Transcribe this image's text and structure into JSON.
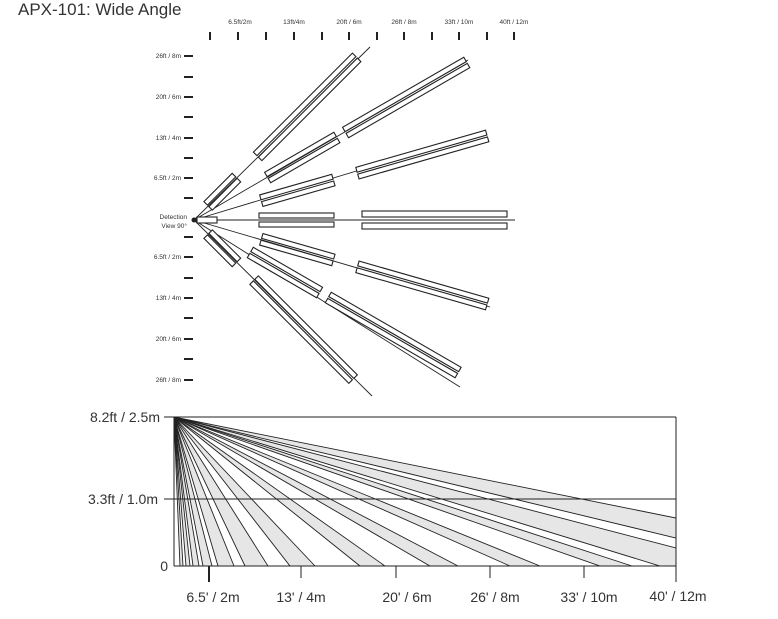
{
  "title": "APX-101: Wide Angle",
  "top_view": {
    "top_ticks": [
      "6.5ft/2m",
      "13ft/4m",
      "20ft / 6m",
      "26ft / 8m",
      "33ft / 10m",
      "40ft / 12m"
    ],
    "left_ticks_upper": [
      "26ft / 8m",
      "20ft / 6m",
      "13ft / 4m",
      "6.5ft / 2m"
    ],
    "left_ticks_lower": [
      "6.5ft / 2m",
      "13ft / 4m",
      "20ft / 6m",
      "26ft / 8m"
    ],
    "origin_label_1": "Detection",
    "origin_label_2": "View 90°"
  },
  "side_view": {
    "y_labels": [
      "8.2ft / 2.5m",
      "3.3ft / 1.0m",
      "0"
    ],
    "x_labels": [
      "6.5' / 2m",
      "13' / 4m",
      "20' / 6m",
      "26' / 8m",
      "33' / 10m",
      "40' / 12m"
    ]
  }
}
